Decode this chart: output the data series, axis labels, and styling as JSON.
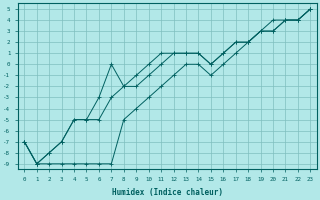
{
  "xlabel": "Humidex (Indice chaleur)",
  "bg_color": "#b2e8e8",
  "grid_color": "#7fbfbf",
  "line_color": "#006060",
  "xlim": [
    -0.5,
    23.5
  ],
  "ylim": [
    -9.5,
    5.5
  ],
  "xticks": [
    0,
    1,
    2,
    3,
    4,
    5,
    6,
    7,
    8,
    9,
    10,
    11,
    12,
    13,
    14,
    15,
    16,
    17,
    18,
    19,
    20,
    21,
    22,
    23
  ],
  "yticks": [
    5,
    4,
    3,
    2,
    1,
    0,
    -1,
    -2,
    -3,
    -4,
    -5,
    -6,
    -7,
    -8,
    -9
  ],
  "series1_x": [
    0,
    1,
    2,
    3,
    4,
    5,
    6,
    7,
    8,
    9,
    10,
    11,
    12,
    13,
    14,
    15,
    16,
    17,
    18,
    19,
    20,
    21,
    22,
    23
  ],
  "series1_y": [
    -7,
    -9,
    -9,
    -9,
    -9,
    -9,
    -9,
    -9,
    -5,
    -4,
    -3,
    -2,
    -1,
    0,
    0,
    -1,
    0,
    1,
    2,
    3,
    3,
    4,
    4,
    5
  ],
  "series2_x": [
    0,
    1,
    2,
    3,
    4,
    5,
    6,
    7,
    8,
    9,
    10,
    11,
    12,
    13,
    14,
    15,
    16,
    17,
    18,
    19,
    20,
    21,
    22,
    23
  ],
  "series2_y": [
    -7,
    -9,
    -8,
    -7,
    -5,
    -5,
    -5,
    -3,
    -2,
    -1,
    0,
    1,
    1,
    1,
    1,
    0,
    1,
    2,
    2,
    3,
    3,
    4,
    4,
    5
  ],
  "series3_x": [
    0,
    1,
    2,
    3,
    4,
    5,
    6,
    7,
    8,
    9,
    10,
    11,
    12,
    13,
    14,
    15,
    16,
    17,
    18,
    19,
    20,
    21,
    22,
    23
  ],
  "series3_y": [
    -7,
    -9,
    -8,
    -7,
    -5,
    -5,
    -3,
    0,
    -2,
    -2,
    -1,
    0,
    1,
    1,
    1,
    0,
    1,
    2,
    2,
    3,
    4,
    4,
    4,
    5
  ]
}
